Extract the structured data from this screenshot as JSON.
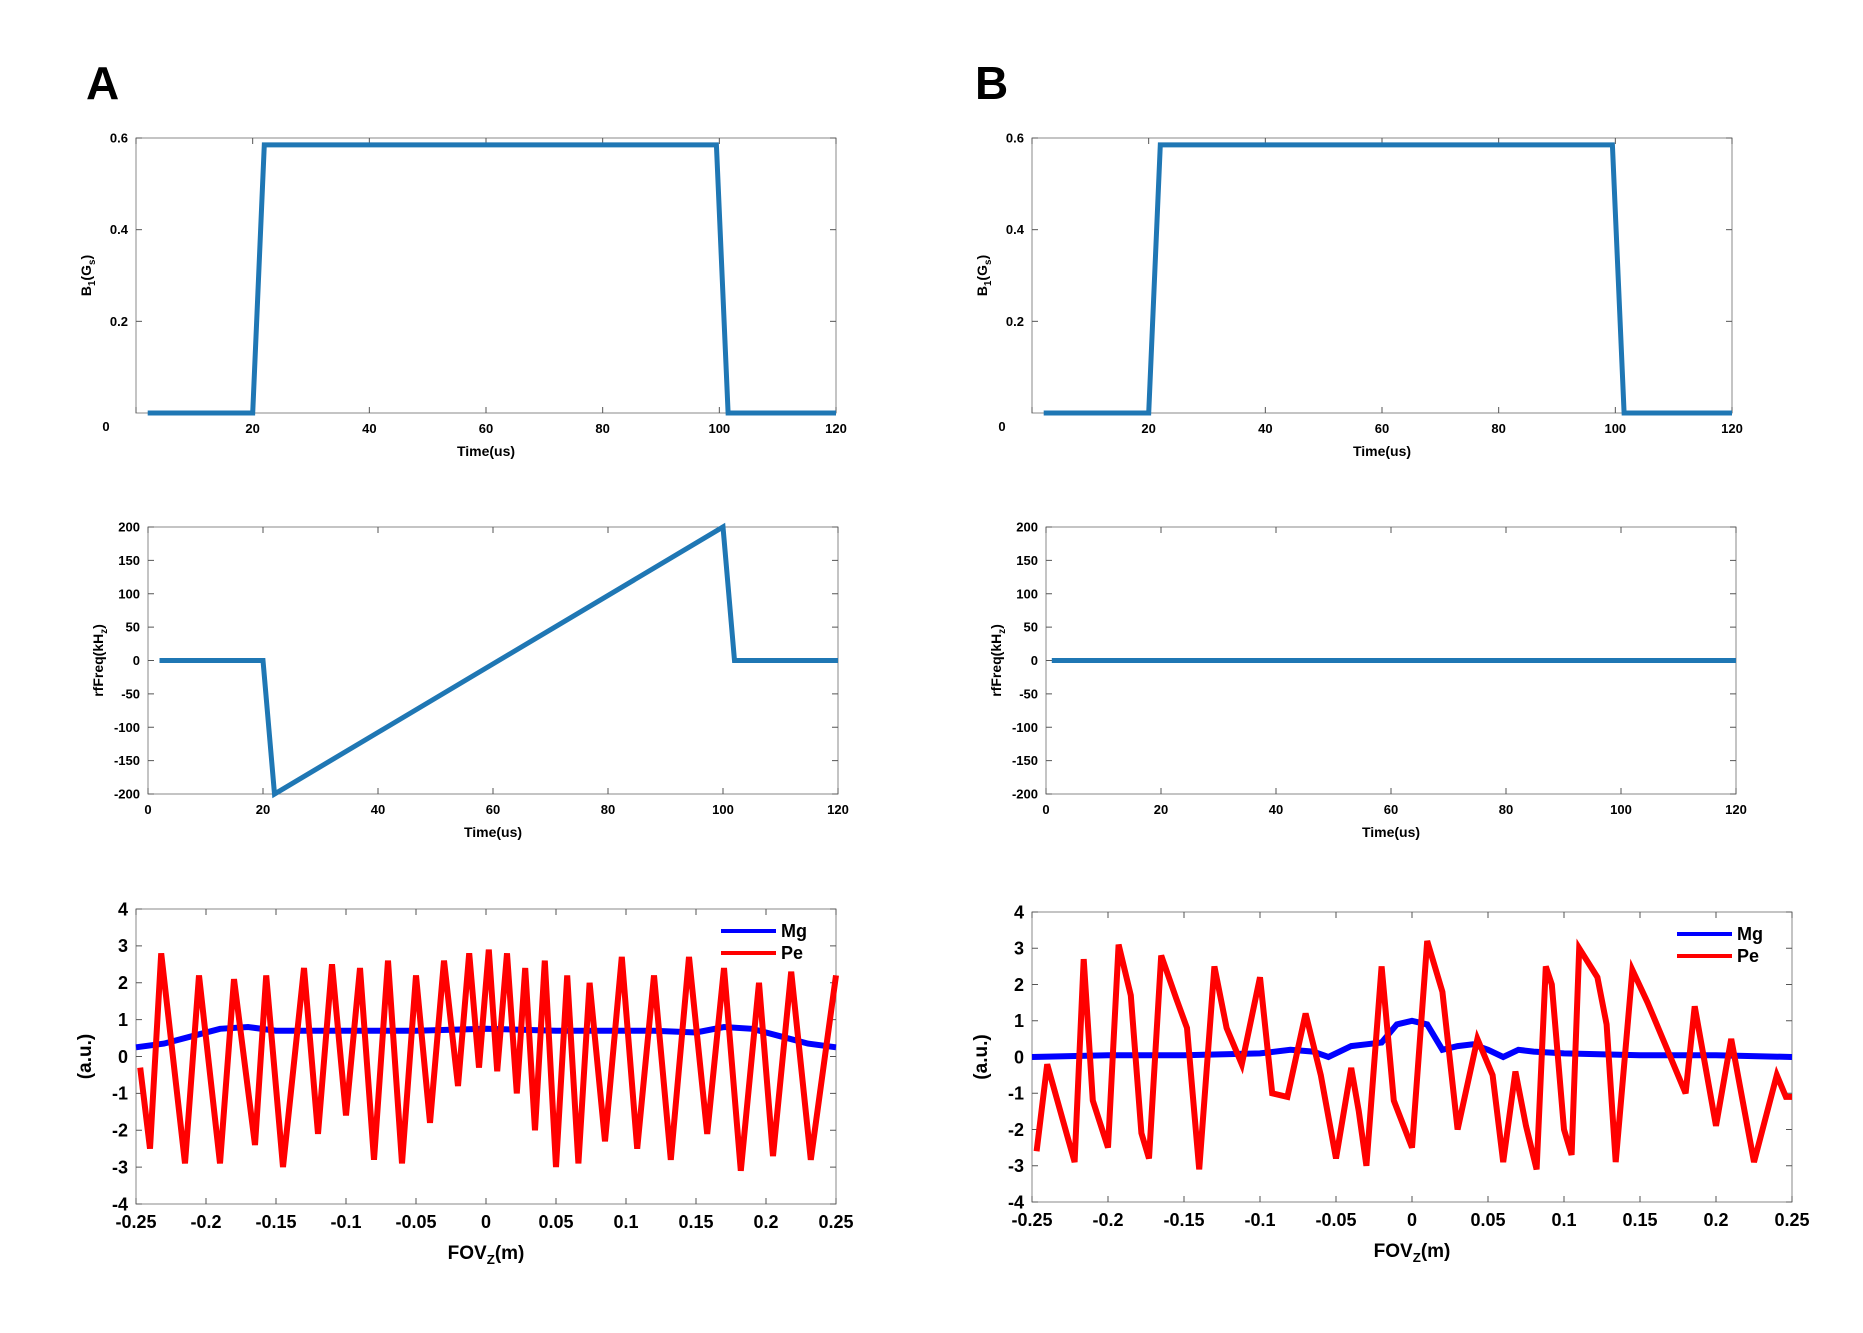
{
  "panels": [
    "A",
    "B"
  ],
  "colors": {
    "trace": "#1f77b4",
    "mg": "#0000ff",
    "pe": "#ff0000",
    "axis": "#888888"
  },
  "chart_data": [
    {
      "id": "A-b1",
      "type": "line",
      "title": "",
      "xlabel": "Time(us)",
      "ylabel": "B1(Gs)",
      "ylabel_parts": {
        "main": "B",
        "sub1": "1",
        "mid": "(G",
        "sub2": "s",
        "end": ")"
      },
      "xlim": [
        0,
        120
      ],
      "ylim": [
        0,
        0.6
      ],
      "xticks": [
        0,
        20,
        40,
        60,
        80,
        100,
        120
      ],
      "xtick_labels": [
        "0",
        "20",
        "40",
        "60",
        "80",
        "100",
        "120"
      ],
      "yticks": [
        0.2,
        0.4,
        0.6
      ],
      "ytick_labels": [
        "0.2",
        "0.4",
        "0.6"
      ],
      "series": [
        {
          "name": "B1",
          "x": [
            2,
            20,
            22,
            99.5,
            101.5,
            120
          ],
          "y": [
            0,
            0,
            0.585,
            0.585,
            0,
            0
          ]
        }
      ]
    },
    {
      "id": "B-b1",
      "type": "line",
      "title": "",
      "xlabel": "Time(us)",
      "ylabel": "B1(Gs)",
      "ylabel_parts": {
        "main": "B",
        "sub1": "1",
        "mid": "(G",
        "sub2": "s",
        "end": ")"
      },
      "xlim": [
        0,
        120
      ],
      "ylim": [
        0,
        0.6
      ],
      "xticks": [
        0,
        20,
        40,
        60,
        80,
        100,
        120
      ],
      "xtick_labels": [
        "0",
        "20",
        "40",
        "60",
        "80",
        "100",
        "120"
      ],
      "yticks": [
        0.2,
        0.4,
        0.6
      ],
      "ytick_labels": [
        "0.2",
        "0.4",
        "0.6"
      ],
      "series": [
        {
          "name": "B1",
          "x": [
            2,
            20,
            22,
            99.5,
            101.5,
            120
          ],
          "y": [
            0,
            0,
            0.585,
            0.585,
            0,
            0
          ]
        }
      ]
    },
    {
      "id": "A-freq",
      "type": "line",
      "title": "",
      "xlabel": "Time(us)",
      "ylabel": "rfFreq(kHz)",
      "ylabel_parts": {
        "main": "rfFreq(kH",
        "sub1": "z",
        "mid": ")",
        "sub2": "",
        "end": ""
      },
      "xlim": [
        0,
        120
      ],
      "ylim": [
        -200,
        200
      ],
      "xticks": [
        0,
        20,
        40,
        60,
        80,
        100,
        120
      ],
      "xtick_labels": [
        "0",
        "20",
        "40",
        "60",
        "80",
        "100",
        "120"
      ],
      "yticks": [
        -200,
        -150,
        -100,
        -50,
        0,
        50,
        100,
        150,
        200
      ],
      "ytick_labels": [
        "-200",
        "-150",
        "-100",
        "-50",
        "0",
        "50",
        "100",
        "150",
        "200"
      ],
      "series": [
        {
          "name": "rfFreq",
          "x": [
            2,
            20,
            22,
            100,
            102,
            120
          ],
          "y": [
            0,
            0,
            -200,
            200,
            0,
            0
          ]
        }
      ]
    },
    {
      "id": "B-freq",
      "type": "line",
      "title": "",
      "xlabel": "Time(us)",
      "ylabel": "rfFreq(kHz)",
      "ylabel_parts": {
        "main": "rfFreq(kH",
        "sub1": "z",
        "mid": ")",
        "sub2": "",
        "end": ""
      },
      "xlim": [
        0,
        120
      ],
      "ylim": [
        -200,
        200
      ],
      "xticks": [
        0,
        20,
        40,
        60,
        80,
        100,
        120
      ],
      "xtick_labels": [
        "0",
        "20",
        "40",
        "60",
        "80",
        "100",
        "120"
      ],
      "yticks": [
        -200,
        -150,
        -100,
        -50,
        0,
        50,
        100,
        150,
        200
      ],
      "ytick_labels": [
        "-200",
        "-150",
        "-100",
        "-50",
        "0",
        "50",
        "100",
        "150",
        "200"
      ],
      "series": [
        {
          "name": "rfFreq",
          "x": [
            1,
            120
          ],
          "y": [
            0,
            0
          ]
        }
      ]
    },
    {
      "id": "A-prof",
      "type": "line",
      "title": "",
      "xlabel": "FOVZ(m)",
      "ylabel": "(a.u.)",
      "xlabel_parts": {
        "main": "FOV",
        "sub1": "Z",
        "end": "(m)"
      },
      "xlim": [
        -0.25,
        0.25
      ],
      "ylim": [
        -4,
        4
      ],
      "xticks": [
        -0.25,
        -0.2,
        -0.15,
        -0.1,
        -0.05,
        0,
        0.05,
        0.1,
        0.15,
        0.2,
        0.25
      ],
      "xtick_labels": [
        "-0.25",
        "-0.2",
        "-0.15",
        "-0.1",
        "-0.05",
        "0",
        "0.05",
        "0.1",
        "0.15",
        "0.2",
        "0.25"
      ],
      "yticks": [
        -4,
        -3,
        -2,
        -1,
        0,
        1,
        2,
        3,
        4
      ],
      "ytick_labels": [
        "-4",
        "-3",
        "-2",
        "-1",
        "0",
        "1",
        "2",
        "3",
        "4"
      ],
      "legend": {
        "position": "top-right",
        "entries": [
          "Mg",
          "Pe"
        ]
      },
      "series": [
        {
          "name": "Mg",
          "x": [
            -0.25,
            -0.23,
            -0.21,
            -0.19,
            -0.17,
            -0.15,
            -0.12,
            -0.1,
            -0.05,
            0,
            0.05,
            0.1,
            0.12,
            0.15,
            0.17,
            0.19,
            0.21,
            0.23,
            0.25
          ],
          "y": [
            0.25,
            0.35,
            0.55,
            0.75,
            0.8,
            0.7,
            0.7,
            0.7,
            0.7,
            0.75,
            0.7,
            0.7,
            0.7,
            0.65,
            0.8,
            0.75,
            0.55,
            0.35,
            0.25
          ]
        },
        {
          "name": "Pe",
          "x": [
            -0.247,
            -0.24,
            -0.232,
            -0.215,
            -0.205,
            -0.19,
            -0.18,
            -0.165,
            -0.157,
            -0.145,
            -0.13,
            -0.12,
            -0.11,
            -0.1,
            -0.09,
            -0.08,
            -0.07,
            -0.06,
            -0.05,
            -0.04,
            -0.03,
            -0.02,
            -0.012,
            -0.005,
            0.002,
            0.008,
            0.015,
            0.022,
            0.028,
            0.035,
            0.042,
            0.05,
            0.058,
            0.066,
            0.074,
            0.085,
            0.097,
            0.108,
            0.12,
            0.132,
            0.145,
            0.158,
            0.17,
            0.182,
            0.195,
            0.205,
            0.218,
            0.232,
            0.25
          ],
          "y": [
            -0.3,
            -2.5,
            2.8,
            -2.9,
            2.2,
            -2.9,
            2.1,
            -2.4,
            2.2,
            -3.0,
            2.4,
            -2.1,
            2.5,
            -1.6,
            2.4,
            -2.8,
            2.6,
            -2.9,
            2.2,
            -1.8,
            2.6,
            -0.8,
            2.8,
            -0.3,
            2.9,
            -0.4,
            2.8,
            -1.0,
            2.4,
            -2.0,
            2.6,
            -3.0,
            2.2,
            -2.9,
            2.0,
            -2.3,
            2.7,
            -2.5,
            2.2,
            -2.8,
            2.7,
            -2.1,
            2.4,
            -3.1,
            2.0,
            -2.7,
            2.3,
            -2.8,
            2.2
          ]
        }
      ]
    },
    {
      "id": "B-prof",
      "type": "line",
      "title": "",
      "xlabel": "FOVZ(m)",
      "ylabel": "(a.u.)",
      "xlabel_parts": {
        "main": "FOV",
        "sub1": "Z",
        "end": "(m)"
      },
      "xlim": [
        -0.25,
        0.25
      ],
      "ylim": [
        -4,
        4
      ],
      "xticks": [
        -0.25,
        -0.2,
        -0.15,
        -0.1,
        -0.05,
        0,
        0.05,
        0.1,
        0.15,
        0.2,
        0.25
      ],
      "xtick_labels": [
        "-0.25",
        "-0.2",
        "-0.15",
        "-0.1",
        "-0.05",
        "0",
        "0.05",
        "0.1",
        "0.15",
        "0.2",
        "0.25"
      ],
      "yticks": [
        -4,
        -3,
        -2,
        -1,
        0,
        1,
        2,
        3,
        4
      ],
      "ytick_labels": [
        "-4",
        "-3",
        "-2",
        "-1",
        "0",
        "1",
        "2",
        "3",
        "4"
      ],
      "legend": {
        "position": "top-right",
        "entries": [
          "Mg",
          "Pe"
        ]
      },
      "series": [
        {
          "name": "Mg",
          "x": [
            -0.25,
            -0.2,
            -0.15,
            -0.1,
            -0.08,
            -0.065,
            -0.055,
            -0.04,
            -0.03,
            -0.02,
            -0.01,
            0,
            0.01,
            0.02,
            0.03,
            0.04,
            0.05,
            0.06,
            0.07,
            0.08,
            0.1,
            0.15,
            0.2,
            0.25
          ],
          "y": [
            0.0,
            0.05,
            0.05,
            0.1,
            0.2,
            0.15,
            0.0,
            0.3,
            0.35,
            0.4,
            0.9,
            1.0,
            0.9,
            0.2,
            0.3,
            0.35,
            0.2,
            0.0,
            0.2,
            0.15,
            0.1,
            0.05,
            0.05,
            0.0
          ]
        },
        {
          "name": "Pe",
          "x": [
            -0.247,
            -0.24,
            -0.222,
            -0.216,
            -0.21,
            -0.2,
            -0.193,
            -0.185,
            -0.178,
            -0.173,
            -0.165,
            -0.155,
            -0.148,
            -0.14,
            -0.13,
            -0.122,
            -0.112,
            -0.1,
            -0.092,
            -0.082,
            -0.07,
            -0.06,
            -0.05,
            -0.04,
            -0.035,
            -0.03,
            -0.02,
            -0.012,
            0.0,
            0.01,
            0.02,
            0.03,
            0.043,
            0.053,
            0.06,
            0.068,
            0.075,
            0.082,
            0.088,
            0.092,
            0.1,
            0.105,
            0.11,
            0.122,
            0.128,
            0.134,
            0.145,
            0.155,
            0.17,
            0.18,
            0.186,
            0.2,
            0.21,
            0.225,
            0.24,
            0.246,
            0.25
          ],
          "y": [
            -2.6,
            -0.2,
            -2.9,
            2.7,
            -1.2,
            -2.5,
            3.1,
            1.7,
            -2.1,
            -2.8,
            2.8,
            1.6,
            0.8,
            -3.1,
            2.5,
            0.8,
            -0.2,
            2.2,
            -1.0,
            -1.1,
            1.2,
            -0.5,
            -2.8,
            -0.3,
            -1.5,
            -3.0,
            2.5,
            -1.2,
            -2.5,
            3.2,
            1.8,
            -2.0,
            0.5,
            -0.5,
            -2.9,
            -0.4,
            -1.9,
            -3.1,
            2.5,
            2.0,
            -2.0,
            -2.7,
            3.0,
            2.2,
            0.9,
            -2.9,
            2.4,
            1.5,
            0.0,
            -1.0,
            1.4,
            -1.9,
            0.5,
            -2.9,
            -0.5,
            -1.1,
            -1.1
          ]
        }
      ]
    }
  ]
}
